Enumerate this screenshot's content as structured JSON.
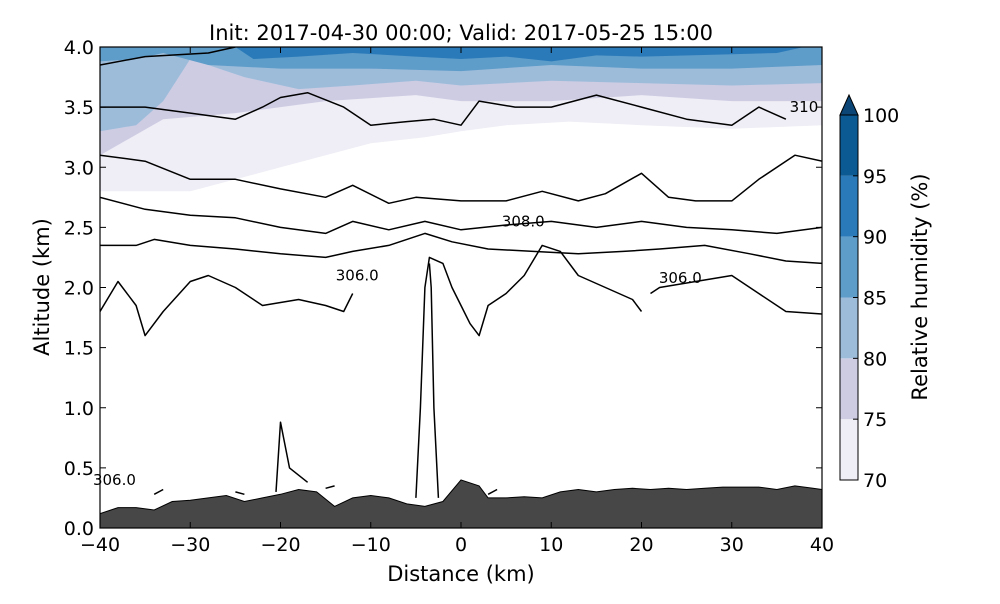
{
  "chart_data": {
    "type": "contour",
    "title": "Init: 2017-04-30 00:00; Valid: 2017-05-25 15:00",
    "xlabel": "Distance (km)",
    "ylabel": "Altitude (km)",
    "xlim": [
      -40,
      40
    ],
    "ylim": [
      0.0,
      4.0
    ],
    "x_ticks": [
      -40,
      -30,
      -20,
      -10,
      0,
      10,
      20,
      30,
      40
    ],
    "x_tick_labels": [
      "−40",
      "−30",
      "−20",
      "−10",
      "0",
      "10",
      "20",
      "30",
      "40"
    ],
    "y_ticks": [
      0.0,
      0.5,
      1.0,
      1.5,
      2.0,
      2.5,
      3.0,
      3.5,
      4.0
    ],
    "y_tick_labels": [
      "0.0",
      "0.5",
      "1.0",
      "1.5",
      "2.0",
      "2.5",
      "3.0",
      "3.5",
      "4.0"
    ],
    "colorbar": {
      "label": "Relative humidity (%)",
      "levels": [
        70,
        75,
        80,
        85,
        90,
        95,
        100
      ],
      "level_labels": [
        "70",
        "75",
        "80",
        "85",
        "90",
        "95",
        "100"
      ],
      "colors": [
        "#efedf5",
        "#cdcce3",
        "#9dbcda",
        "#5e9cc9",
        "#2a7ab9",
        "#0b5a94",
        "#0b4677"
      ],
      "extend": "max"
    },
    "filled_contours": [
      {
        "level": 70,
        "color": "#efedf5",
        "points": [
          [
            -40,
            2.8
          ],
          [
            -30,
            2.8
          ],
          [
            -20,
            3.0
          ],
          [
            -10,
            3.2
          ],
          [
            -4,
            3.25
          ],
          [
            0,
            3.3
          ],
          [
            5,
            3.35
          ],
          [
            12,
            3.38
          ],
          [
            20,
            3.35
          ],
          [
            30,
            3.32
          ],
          [
            40,
            3.35
          ],
          [
            40,
            4.0
          ],
          [
            -40,
            4.0
          ]
        ]
      },
      {
        "level": 75,
        "color": "#cdcce3",
        "points": [
          [
            -40,
            3.1
          ],
          [
            -33,
            3.4
          ],
          [
            -25,
            3.45
          ],
          [
            -15,
            3.55
          ],
          [
            -5,
            3.6
          ],
          [
            0,
            3.55
          ],
          [
            10,
            3.55
          ],
          [
            20,
            3.6
          ],
          [
            30,
            3.55
          ],
          [
            40,
            3.55
          ],
          [
            40,
            4.0
          ],
          [
            -40,
            4.0
          ]
        ]
      },
      {
        "level": 80,
        "color": "#9dbcda",
        "points": [
          [
            -40,
            3.3
          ],
          [
            -36,
            3.35
          ],
          [
            -33,
            3.55
          ],
          [
            -30,
            3.9
          ],
          [
            -24,
            3.75
          ],
          [
            -18,
            3.65
          ],
          [
            -12,
            3.68
          ],
          [
            -5,
            3.72
          ],
          [
            0,
            3.68
          ],
          [
            10,
            3.72
          ],
          [
            20,
            3.7
          ],
          [
            30,
            3.68
          ],
          [
            40,
            3.7
          ],
          [
            40,
            4.0
          ],
          [
            -40,
            4.0
          ]
        ]
      },
      {
        "level": 85,
        "color": "#5e9cc9",
        "points": [
          [
            -40,
            3.88
          ],
          [
            -36,
            3.9
          ],
          [
            -33,
            3.95
          ],
          [
            -28,
            3.85
          ],
          [
            -20,
            3.82
          ],
          [
            -10,
            3.82
          ],
          [
            0,
            3.8
          ],
          [
            10,
            3.85
          ],
          [
            20,
            3.82
          ],
          [
            30,
            3.82
          ],
          [
            40,
            3.85
          ],
          [
            40,
            4.0
          ],
          [
            -40,
            4.0
          ]
        ]
      },
      {
        "level": 90,
        "color": "#2a7ab9",
        "points": [
          [
            -25,
            4.0
          ],
          [
            -23,
            3.9
          ],
          [
            -18,
            3.92
          ],
          [
            -12,
            3.95
          ],
          [
            -5,
            3.92
          ],
          [
            0,
            3.9
          ],
          [
            5,
            3.92
          ],
          [
            10,
            3.88
          ],
          [
            15,
            3.93
          ],
          [
            20,
            3.92
          ],
          [
            30,
            3.94
          ],
          [
            35,
            3.95
          ],
          [
            38,
            4.0
          ]
        ]
      }
    ],
    "series": [
      {
        "name": "310",
        "points": [
          [
            -40,
            3.85
          ],
          [
            -35,
            3.92
          ],
          [
            -28,
            3.95
          ],
          [
            -25,
            4.0
          ]
        ]
      },
      {
        "name": "310",
        "points": [
          [
            -40,
            3.5
          ],
          [
            -35,
            3.5
          ],
          [
            -30,
            3.45
          ],
          [
            -25,
            3.4
          ],
          [
            -22,
            3.5
          ],
          [
            -20,
            3.58
          ],
          [
            -17,
            3.62
          ],
          [
            -13,
            3.5
          ],
          [
            -10,
            3.35
          ],
          [
            -6,
            3.38
          ],
          [
            -3,
            3.4
          ],
          [
            0,
            3.35
          ],
          [
            2,
            3.55
          ],
          [
            6,
            3.5
          ],
          [
            10,
            3.5
          ],
          [
            15,
            3.6
          ],
          [
            20,
            3.5
          ],
          [
            25,
            3.4
          ],
          [
            30,
            3.35
          ],
          [
            33,
            3.5
          ],
          [
            36,
            3.4
          ]
        ]
      },
      {
        "name": "308.0",
        "points": [
          [
            -40,
            3.1
          ],
          [
            -35,
            3.05
          ],
          [
            -30,
            2.9
          ],
          [
            -25,
            2.9
          ],
          [
            -20,
            2.82
          ],
          [
            -15,
            2.75
          ],
          [
            -12,
            2.85
          ],
          [
            -8,
            2.7
          ],
          [
            -5,
            2.75
          ],
          [
            0,
            2.72
          ],
          [
            5,
            2.72
          ],
          [
            9,
            2.8
          ],
          [
            13,
            2.72
          ],
          [
            16,
            2.78
          ],
          [
            20,
            2.95
          ],
          [
            23,
            2.75
          ],
          [
            26,
            2.72
          ],
          [
            30,
            2.72
          ],
          [
            33,
            2.9
          ],
          [
            37,
            3.1
          ],
          [
            40,
            3.05
          ]
        ]
      },
      {
        "name": "308.0",
        "points": [
          [
            -40,
            2.75
          ],
          [
            -35,
            2.65
          ],
          [
            -30,
            2.6
          ],
          [
            -25,
            2.58
          ],
          [
            -20,
            2.5
          ],
          [
            -15,
            2.45
          ],
          [
            -12,
            2.55
          ],
          [
            -8,
            2.48
          ],
          [
            -4,
            2.55
          ],
          [
            0,
            2.48
          ],
          [
            5,
            2.52
          ],
          [
            10,
            2.55
          ],
          [
            15,
            2.5
          ],
          [
            20,
            2.55
          ],
          [
            25,
            2.5
          ],
          [
            30,
            2.48
          ],
          [
            35,
            2.45
          ],
          [
            40,
            2.5
          ]
        ]
      },
      {
        "name": "306.0",
        "points": [
          [
            -40,
            2.35
          ],
          [
            -36,
            2.35
          ],
          [
            -34,
            2.4
          ],
          [
            -30,
            2.35
          ],
          [
            -25,
            2.32
          ],
          [
            -20,
            2.28
          ],
          [
            -15,
            2.25
          ],
          [
            -12,
            2.3
          ],
          [
            -8,
            2.35
          ],
          [
            -4,
            2.45
          ],
          [
            -1,
            2.38
          ],
          [
            3,
            2.32
          ],
          [
            8,
            2.3
          ],
          [
            13,
            2.28
          ],
          [
            18,
            2.3
          ],
          [
            22,
            2.32
          ],
          [
            27,
            2.35
          ],
          [
            32,
            2.28
          ],
          [
            36,
            2.22
          ],
          [
            40,
            2.2
          ]
        ]
      },
      {
        "name": "306.0",
        "points": [
          [
            -40,
            1.8
          ],
          [
            -38,
            2.05
          ],
          [
            -36,
            1.85
          ],
          [
            -35,
            1.6
          ],
          [
            -33,
            1.8
          ],
          [
            -30,
            2.05
          ],
          [
            -28,
            2.1
          ],
          [
            -25,
            2.0
          ],
          [
            -22,
            1.85
          ],
          [
            -18,
            1.9
          ],
          [
            -15,
            1.85
          ],
          [
            -13,
            1.8
          ],
          [
            -12,
            1.95
          ]
        ]
      },
      {
        "name": "306.0",
        "points": [
          [
            -5,
            0.25
          ],
          [
            -4.5,
            1.0
          ],
          [
            -4,
            2.0
          ],
          [
            -3.5,
            2.25
          ],
          [
            -2,
            2.2
          ],
          [
            -1,
            2.0
          ],
          [
            0,
            1.85
          ],
          [
            1,
            1.7
          ],
          [
            2,
            1.6
          ],
          [
            3,
            1.85
          ],
          [
            5,
            1.95
          ],
          [
            7,
            2.1
          ],
          [
            9,
            2.35
          ],
          [
            11,
            2.3
          ],
          [
            13,
            2.1
          ],
          [
            16,
            2.0
          ],
          [
            19,
            1.9
          ],
          [
            20,
            1.8
          ]
        ]
      },
      {
        "name": "306.0",
        "points": [
          [
            -2.5,
            0.25
          ],
          [
            -3,
            1.0
          ],
          [
            -3.3,
            2.0
          ],
          [
            -3.5,
            2.2
          ]
        ]
      },
      {
        "name": "306.0",
        "points": [
          [
            21,
            1.95
          ],
          [
            22,
            2.0
          ],
          [
            26,
            2.05
          ],
          [
            30,
            2.1
          ],
          [
            33,
            1.95
          ],
          [
            36,
            1.8
          ],
          [
            40,
            1.78
          ]
        ]
      },
      {
        "name": "306.0",
        "points": [
          [
            -20.5,
            0.3
          ],
          [
            -20,
            0.88
          ],
          [
            -19,
            0.5
          ],
          [
            -17,
            0.38
          ]
        ]
      },
      {
        "name": "terrain-trace",
        "points": [
          [
            -34,
            0.28
          ],
          [
            -33,
            0.32
          ]
        ]
      },
      {
        "name": "terrain-trace",
        "points": [
          [
            -25,
            0.3
          ],
          [
            -24,
            0.28
          ]
        ]
      },
      {
        "name": "terrain-trace",
        "points": [
          [
            -15,
            0.33
          ],
          [
            -14,
            0.35
          ]
        ]
      },
      {
        "name": "terrain-trace",
        "points": [
          [
            3,
            0.28
          ],
          [
            4,
            0.32
          ]
        ]
      }
    ],
    "contour_labels": [
      {
        "text": "306.0",
        "x": -38.4,
        "y": 0.4
      },
      {
        "text": "306.0",
        "x": -11.5,
        "y": 2.1
      },
      {
        "text": "308.0",
        "x": 6.9,
        "y": 2.55
      },
      {
        "text": "306.0",
        "x": 24.3,
        "y": 2.08
      },
      {
        "text": "310",
        "x": 38.0,
        "y": 3.5
      }
    ],
    "terrain": {
      "color": "#474747",
      "points": [
        [
          -40,
          0.12
        ],
        [
          -38,
          0.17
        ],
        [
          -36,
          0.17
        ],
        [
          -34,
          0.15
        ],
        [
          -32,
          0.22
        ],
        [
          -30,
          0.23
        ],
        [
          -28,
          0.25
        ],
        [
          -26,
          0.27
        ],
        [
          -24,
          0.22
        ],
        [
          -22,
          0.25
        ],
        [
          -20,
          0.28
        ],
        [
          -18,
          0.32
        ],
        [
          -16,
          0.3
        ],
        [
          -14,
          0.18
        ],
        [
          -12,
          0.25
        ],
        [
          -10,
          0.27
        ],
        [
          -8,
          0.25
        ],
        [
          -6,
          0.2
        ],
        [
          -4,
          0.18
        ],
        [
          -2,
          0.22
        ],
        [
          0,
          0.4
        ],
        [
          2,
          0.35
        ],
        [
          3,
          0.25
        ],
        [
          5,
          0.25
        ],
        [
          7,
          0.26
        ],
        [
          9,
          0.25
        ],
        [
          11,
          0.3
        ],
        [
          13,
          0.32
        ],
        [
          15,
          0.3
        ],
        [
          17,
          0.32
        ],
        [
          19,
          0.33
        ],
        [
          21,
          0.32
        ],
        [
          23,
          0.33
        ],
        [
          25,
          0.32
        ],
        [
          27,
          0.33
        ],
        [
          29,
          0.34
        ],
        [
          31,
          0.34
        ],
        [
          33,
          0.34
        ],
        [
          35,
          0.32
        ],
        [
          37,
          0.35
        ],
        [
          39,
          0.33
        ],
        [
          40,
          0.32
        ]
      ]
    }
  }
}
